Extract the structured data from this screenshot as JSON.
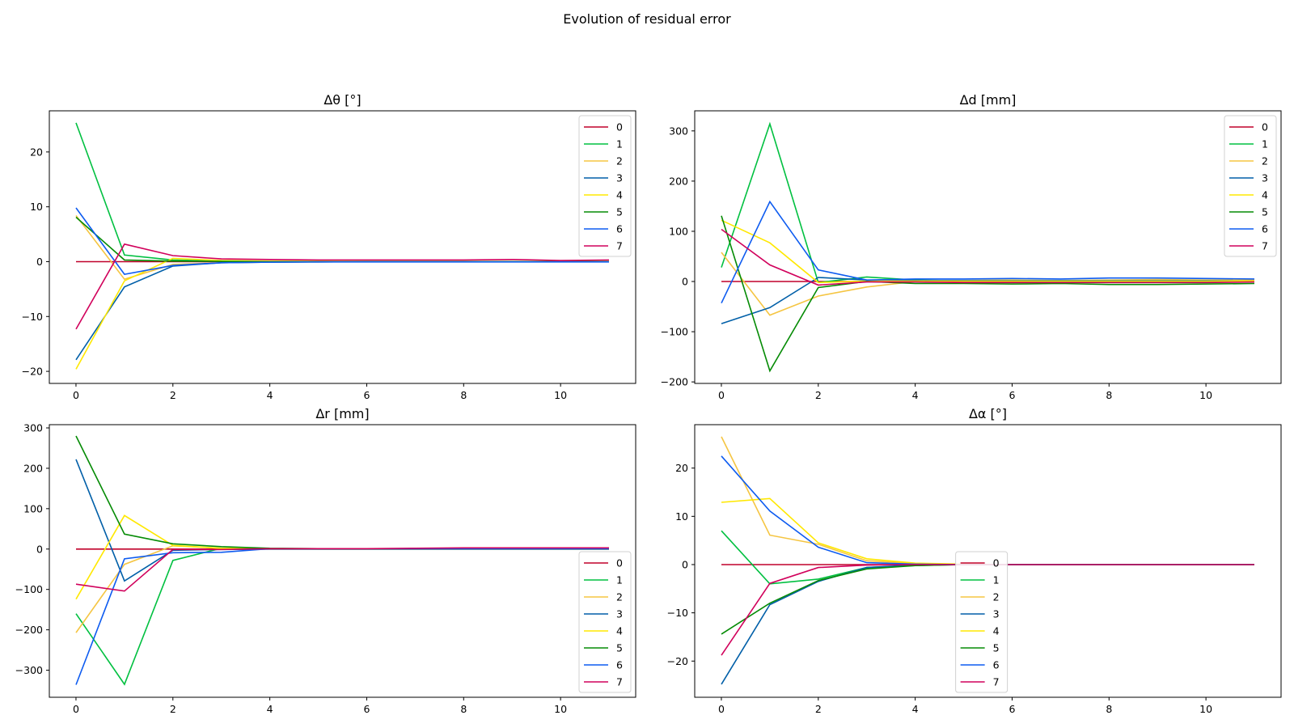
{
  "figure": {
    "title": "Evolution of residual error"
  },
  "chart_data": [
    {
      "type": "line",
      "title": "Δθ [°]",
      "xlabel": "",
      "ylabel": "",
      "xlim": [
        -0.55,
        11.55
      ],
      "ylim": [
        -22.2,
        27.5
      ],
      "xticks": [
        0,
        2,
        4,
        6,
        8,
        10
      ],
      "yticks": [
        -20,
        -10,
        0,
        10,
        20
      ],
      "legend": "top-right",
      "grid": false,
      "x": [
        0,
        1,
        2,
        3,
        4,
        5,
        6,
        7,
        8,
        9,
        10,
        11
      ],
      "series": [
        {
          "name": "0",
          "color": "#c0002a",
          "values": [
            0,
            0,
            0,
            0,
            0,
            0,
            0,
            0,
            0,
            0,
            0,
            0
          ]
        },
        {
          "name": "1",
          "color": "#00c040",
          "values": [
            25.3,
            1.2,
            0.3,
            0.1,
            0.05,
            0.02,
            0.01,
            0,
            0,
            0,
            0,
            0
          ]
        },
        {
          "name": "2",
          "color": "#f5c542",
          "values": [
            8.4,
            -3.2,
            -0.5,
            -0.2,
            -0.1,
            -0.05,
            0,
            0,
            0,
            0,
            0,
            0
          ]
        },
        {
          "name": "3",
          "color": "#005fa8",
          "values": [
            -17.9,
            -4.6,
            -0.8,
            -0.2,
            -0.1,
            -0.05,
            0,
            0,
            0,
            0,
            0,
            0
          ]
        },
        {
          "name": "4",
          "color": "#ffe800",
          "values": [
            -19.6,
            -3.5,
            0.6,
            0.2,
            0.1,
            0.05,
            0,
            0,
            0,
            0,
            0,
            0
          ]
        },
        {
          "name": "5",
          "color": "#058b05",
          "values": [
            8.1,
            0.3,
            0.1,
            0.05,
            0,
            0,
            0,
            0,
            0,
            0,
            0,
            0
          ]
        },
        {
          "name": "6",
          "color": "#0d5bf0",
          "values": [
            9.8,
            -2.3,
            -0.7,
            -0.2,
            -0.1,
            -0.05,
            -0.05,
            -0.05,
            -0.05,
            -0.05,
            -0.05,
            -0.05
          ]
        },
        {
          "name": "7",
          "color": "#d1005b",
          "values": [
            -12.3,
            3.2,
            1.1,
            0.5,
            0.4,
            0.3,
            0.3,
            0.3,
            0.3,
            0.4,
            0.2,
            0.3
          ]
        }
      ]
    },
    {
      "type": "line",
      "title": "Δd [mm]",
      "xlabel": "",
      "ylabel": "",
      "xlim": [
        -0.55,
        11.55
      ],
      "ylim": [
        -203,
        340
      ],
      "xticks": [
        0,
        2,
        4,
        6,
        8,
        10
      ],
      "yticks": [
        -200,
        -100,
        0,
        100,
        200,
        300
      ],
      "legend": "top-right",
      "grid": false,
      "x": [
        0,
        1,
        2,
        3,
        4,
        5,
        6,
        7,
        8,
        9,
        10,
        11
      ],
      "series": [
        {
          "name": "0",
          "color": "#c0002a",
          "values": [
            0,
            0,
            0,
            0,
            0,
            0,
            0,
            0,
            0,
            0,
            0,
            0
          ]
        },
        {
          "name": "1",
          "color": "#00c040",
          "values": [
            28,
            314,
            -2,
            9,
            3,
            1,
            1,
            0,
            -1,
            0,
            0,
            0
          ]
        },
        {
          "name": "2",
          "color": "#f5c542",
          "values": [
            58,
            -67,
            -29,
            -11,
            0,
            2,
            3,
            2,
            3,
            4,
            3,
            3
          ]
        },
        {
          "name": "3",
          "color": "#005fa8",
          "values": [
            -84,
            -52,
            8,
            3,
            2,
            2,
            2,
            2,
            2,
            2,
            2,
            1
          ]
        },
        {
          "name": "4",
          "color": "#ffe800",
          "values": [
            122,
            77,
            -2,
            1,
            1,
            1,
            1,
            1,
            1,
            1,
            1,
            1
          ]
        },
        {
          "name": "5",
          "color": "#058b05",
          "values": [
            131,
            -178,
            -12,
            0,
            -4,
            -4,
            -5,
            -4,
            -6,
            -6,
            -5,
            -4
          ]
        },
        {
          "name": "6",
          "color": "#0d5bf0",
          "values": [
            -43,
            159,
            23,
            3,
            5,
            5,
            6,
            5,
            7,
            7,
            6,
            5
          ]
        },
        {
          "name": "7",
          "color": "#d1005b",
          "values": [
            104,
            33,
            -7,
            -1,
            -1,
            -2,
            -2,
            -2,
            -2,
            -2,
            -2,
            -1
          ]
        }
      ]
    },
    {
      "type": "line",
      "title": "Δr [mm]",
      "xlabel": "",
      "ylabel": "",
      "xlim": [
        -0.55,
        11.55
      ],
      "ylim": [
        -367,
        308
      ],
      "xticks": [
        0,
        2,
        4,
        6,
        8,
        10
      ],
      "yticks": [
        -300,
        -200,
        -100,
        0,
        100,
        200,
        300
      ],
      "legend": "bottom-right",
      "grid": false,
      "x": [
        0,
        1,
        2,
        3,
        4,
        5,
        6,
        7,
        8,
        9,
        10,
        11
      ],
      "series": [
        {
          "name": "0",
          "color": "#c0002a",
          "values": [
            0,
            0,
            0,
            0,
            0,
            0,
            0,
            0,
            0,
            0,
            0,
            0
          ]
        },
        {
          "name": "1",
          "color": "#00c040",
          "values": [
            -160,
            -335,
            -28,
            2,
            1,
            1,
            1,
            1,
            1,
            1,
            1,
            1
          ]
        },
        {
          "name": "2",
          "color": "#f5c542",
          "values": [
            -207,
            -38,
            8,
            2,
            1,
            1,
            1,
            1,
            1,
            1,
            1,
            1
          ]
        },
        {
          "name": "3",
          "color": "#005fa8",
          "values": [
            222,
            -79,
            -3,
            -1,
            0,
            0,
            0,
            0,
            0,
            0,
            0,
            0
          ]
        },
        {
          "name": "4",
          "color": "#ffe800",
          "values": [
            -124,
            83,
            9,
            2,
            1,
            1,
            1,
            1,
            1,
            1,
            1,
            1
          ]
        },
        {
          "name": "5",
          "color": "#058b05",
          "values": [
            280,
            37,
            13,
            6,
            2,
            1,
            1,
            1,
            1,
            1,
            1,
            1
          ]
        },
        {
          "name": "6",
          "color": "#0d5bf0",
          "values": [
            -336,
            -24,
            -9,
            -8,
            1,
            1,
            1,
            1,
            1,
            1,
            1,
            1
          ]
        },
        {
          "name": "7",
          "color": "#d1005b",
          "values": [
            -87,
            -104,
            -1,
            -1,
            1,
            1,
            1,
            2,
            3,
            3,
            3,
            3
          ]
        }
      ]
    },
    {
      "type": "line",
      "title": "Δα [°]",
      "xlabel": "",
      "ylabel": "",
      "xlim": [
        -0.55,
        11.55
      ],
      "ylim": [
        -27.5,
        29.0
      ],
      "xticks": [
        0,
        2,
        4,
        6,
        8,
        10
      ],
      "yticks": [
        -20,
        -10,
        0,
        10,
        20
      ],
      "legend": "lower-center",
      "grid": false,
      "x": [
        0,
        1,
        2,
        3,
        4,
        5,
        6,
        7,
        8,
        9,
        10,
        11
      ],
      "series": [
        {
          "name": "0",
          "color": "#c0002a",
          "values": [
            0,
            0,
            0,
            0,
            0,
            0,
            0,
            0,
            0,
            0,
            0,
            0
          ]
        },
        {
          "name": "1",
          "color": "#00c040",
          "values": [
            7,
            -4,
            -3,
            -0.6,
            -0.2,
            0,
            0,
            0,
            0,
            0,
            0,
            0
          ]
        },
        {
          "name": "2",
          "color": "#f5c542",
          "values": [
            26.5,
            6.1,
            4.2,
            0.8,
            0.2,
            0.05,
            0,
            0,
            0,
            0,
            0,
            0
          ]
        },
        {
          "name": "3",
          "color": "#005fa8",
          "values": [
            -24.8,
            -8.3,
            -3.5,
            -0.6,
            -0.1,
            0,
            0,
            0,
            0,
            0,
            0,
            0
          ]
        },
        {
          "name": "4",
          "color": "#ffe800",
          "values": [
            12.9,
            13.7,
            4.5,
            1.2,
            0.3,
            0.1,
            0,
            0,
            0,
            0,
            0,
            0
          ]
        },
        {
          "name": "5",
          "color": "#058b05",
          "values": [
            -14.4,
            -8,
            -3.3,
            -0.9,
            -0.2,
            0,
            0,
            0,
            0,
            0,
            0,
            0
          ]
        },
        {
          "name": "6",
          "color": "#0d5bf0",
          "values": [
            22.5,
            11.1,
            3.6,
            0.4,
            0.1,
            0,
            0,
            0,
            0,
            0,
            0,
            0
          ]
        },
        {
          "name": "7",
          "color": "#d1005b",
          "values": [
            -18.8,
            -3.9,
            -0.6,
            -0.1,
            0,
            0,
            0,
            0,
            0,
            0,
            0,
            0
          ]
        }
      ]
    }
  ]
}
